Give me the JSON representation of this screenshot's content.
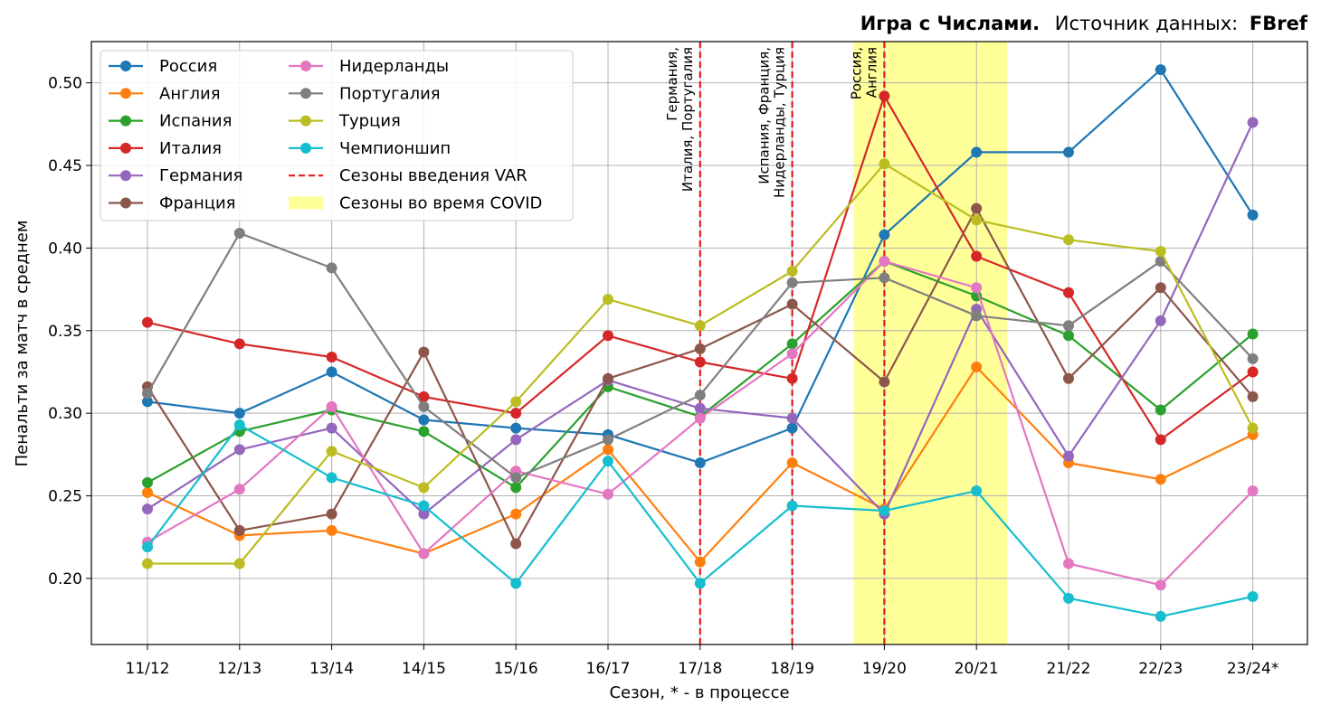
{
  "chart_data": {
    "type": "line",
    "title_bold": "Игра с Числами.",
    "title_source_label": "Источник данных:",
    "title_source": "FBref",
    "xlabel": "Сезон, * - в процессе",
    "ylabel": "Пенальти за матч в среднем",
    "categories": [
      "11/12",
      "12/13",
      "13/14",
      "14/15",
      "15/16",
      "16/17",
      "17/18",
      "18/19",
      "19/20",
      "20/21",
      "21/22",
      "22/23",
      "23/24*"
    ],
    "ylim": [
      0.16,
      0.525
    ],
    "yticks": [
      0.2,
      0.25,
      0.3,
      0.35,
      0.4,
      0.45,
      0.5
    ],
    "ytick_labels": [
      "0.20",
      "0.25",
      "0.30",
      "0.35",
      "0.40",
      "0.45",
      "0.50"
    ],
    "grid": true,
    "legend_location": "top-left",
    "series": [
      {
        "name": "Россия",
        "color": "#1f77b4",
        "values": [
          0.307,
          0.3,
          0.325,
          0.296,
          0.291,
          0.287,
          0.27,
          0.291,
          0.408,
          0.458,
          0.458,
          0.508,
          0.42
        ]
      },
      {
        "name": "Англия",
        "color": "#ff7f0e",
        "values": [
          0.252,
          0.226,
          0.229,
          0.215,
          0.239,
          0.278,
          0.21,
          0.27,
          0.242,
          0.328,
          0.27,
          0.26,
          0.287
        ]
      },
      {
        "name": "Испания",
        "color": "#2ca02c",
        "values": [
          0.258,
          0.289,
          0.302,
          0.289,
          0.255,
          0.316,
          0.298,
          0.342,
          0.392,
          0.371,
          0.347,
          0.302,
          0.348
        ]
      },
      {
        "name": "Италия",
        "color": "#d62728",
        "values": [
          0.355,
          0.342,
          0.334,
          0.31,
          0.3,
          0.347,
          0.331,
          0.321,
          0.492,
          0.395,
          0.373,
          0.284,
          0.325
        ]
      },
      {
        "name": "Германия",
        "color": "#9467bd",
        "values": [
          0.242,
          0.278,
          0.291,
          0.239,
          0.284,
          0.32,
          0.303,
          0.297,
          0.239,
          0.363,
          0.274,
          0.356,
          0.476
        ]
      },
      {
        "name": "Франция",
        "color": "#8c564b",
        "values": [
          0.316,
          0.229,
          0.239,
          0.337,
          0.221,
          0.321,
          0.339,
          0.366,
          0.319,
          0.424,
          0.321,
          0.376,
          0.31
        ]
      },
      {
        "name": "Нидерланды",
        "color": "#e377c2",
        "values": [
          0.222,
          0.254,
          0.304,
          0.215,
          0.265,
          0.251,
          0.297,
          0.336,
          0.392,
          0.376,
          0.209,
          0.196,
          0.253
        ]
      },
      {
        "name": "Португалия",
        "color": "#7f7f7f",
        "values": [
          0.312,
          0.409,
          0.388,
          0.304,
          0.261,
          0.284,
          0.311,
          0.379,
          0.382,
          0.359,
          0.353,
          0.392,
          0.333
        ]
      },
      {
        "name": "Турция",
        "color": "#bcbd22",
        "values": [
          0.209,
          0.209,
          0.277,
          0.255,
          0.307,
          0.369,
          0.353,
          0.386,
          0.451,
          0.417,
          0.405,
          0.398,
          0.291
        ]
      },
      {
        "name": "Чемпионшип",
        "color": "#17becf",
        "values": [
          0.219,
          0.293,
          0.261,
          0.244,
          0.197,
          0.271,
          0.197,
          0.244,
          0.241,
          0.253,
          0.188,
          0.177,
          0.189
        ]
      }
    ],
    "var_seasons": {
      "label": "Сезоны введения VAR",
      "color": "#e31a1c",
      "lines": [
        {
          "season": "17/18",
          "line1": "Германия,",
          "line2": "Италия, Португалия"
        },
        {
          "season": "18/19",
          "line1": "Испания, Франция,",
          "line2": "Нидерланды, Турция"
        },
        {
          "season": "19/20",
          "line1": "Россия,",
          "line2": "Англия"
        }
      ]
    },
    "covid": {
      "label": "Сезоны во время COVID",
      "color": "#ffff99",
      "from": "19/20",
      "to": "20/21"
    }
  }
}
